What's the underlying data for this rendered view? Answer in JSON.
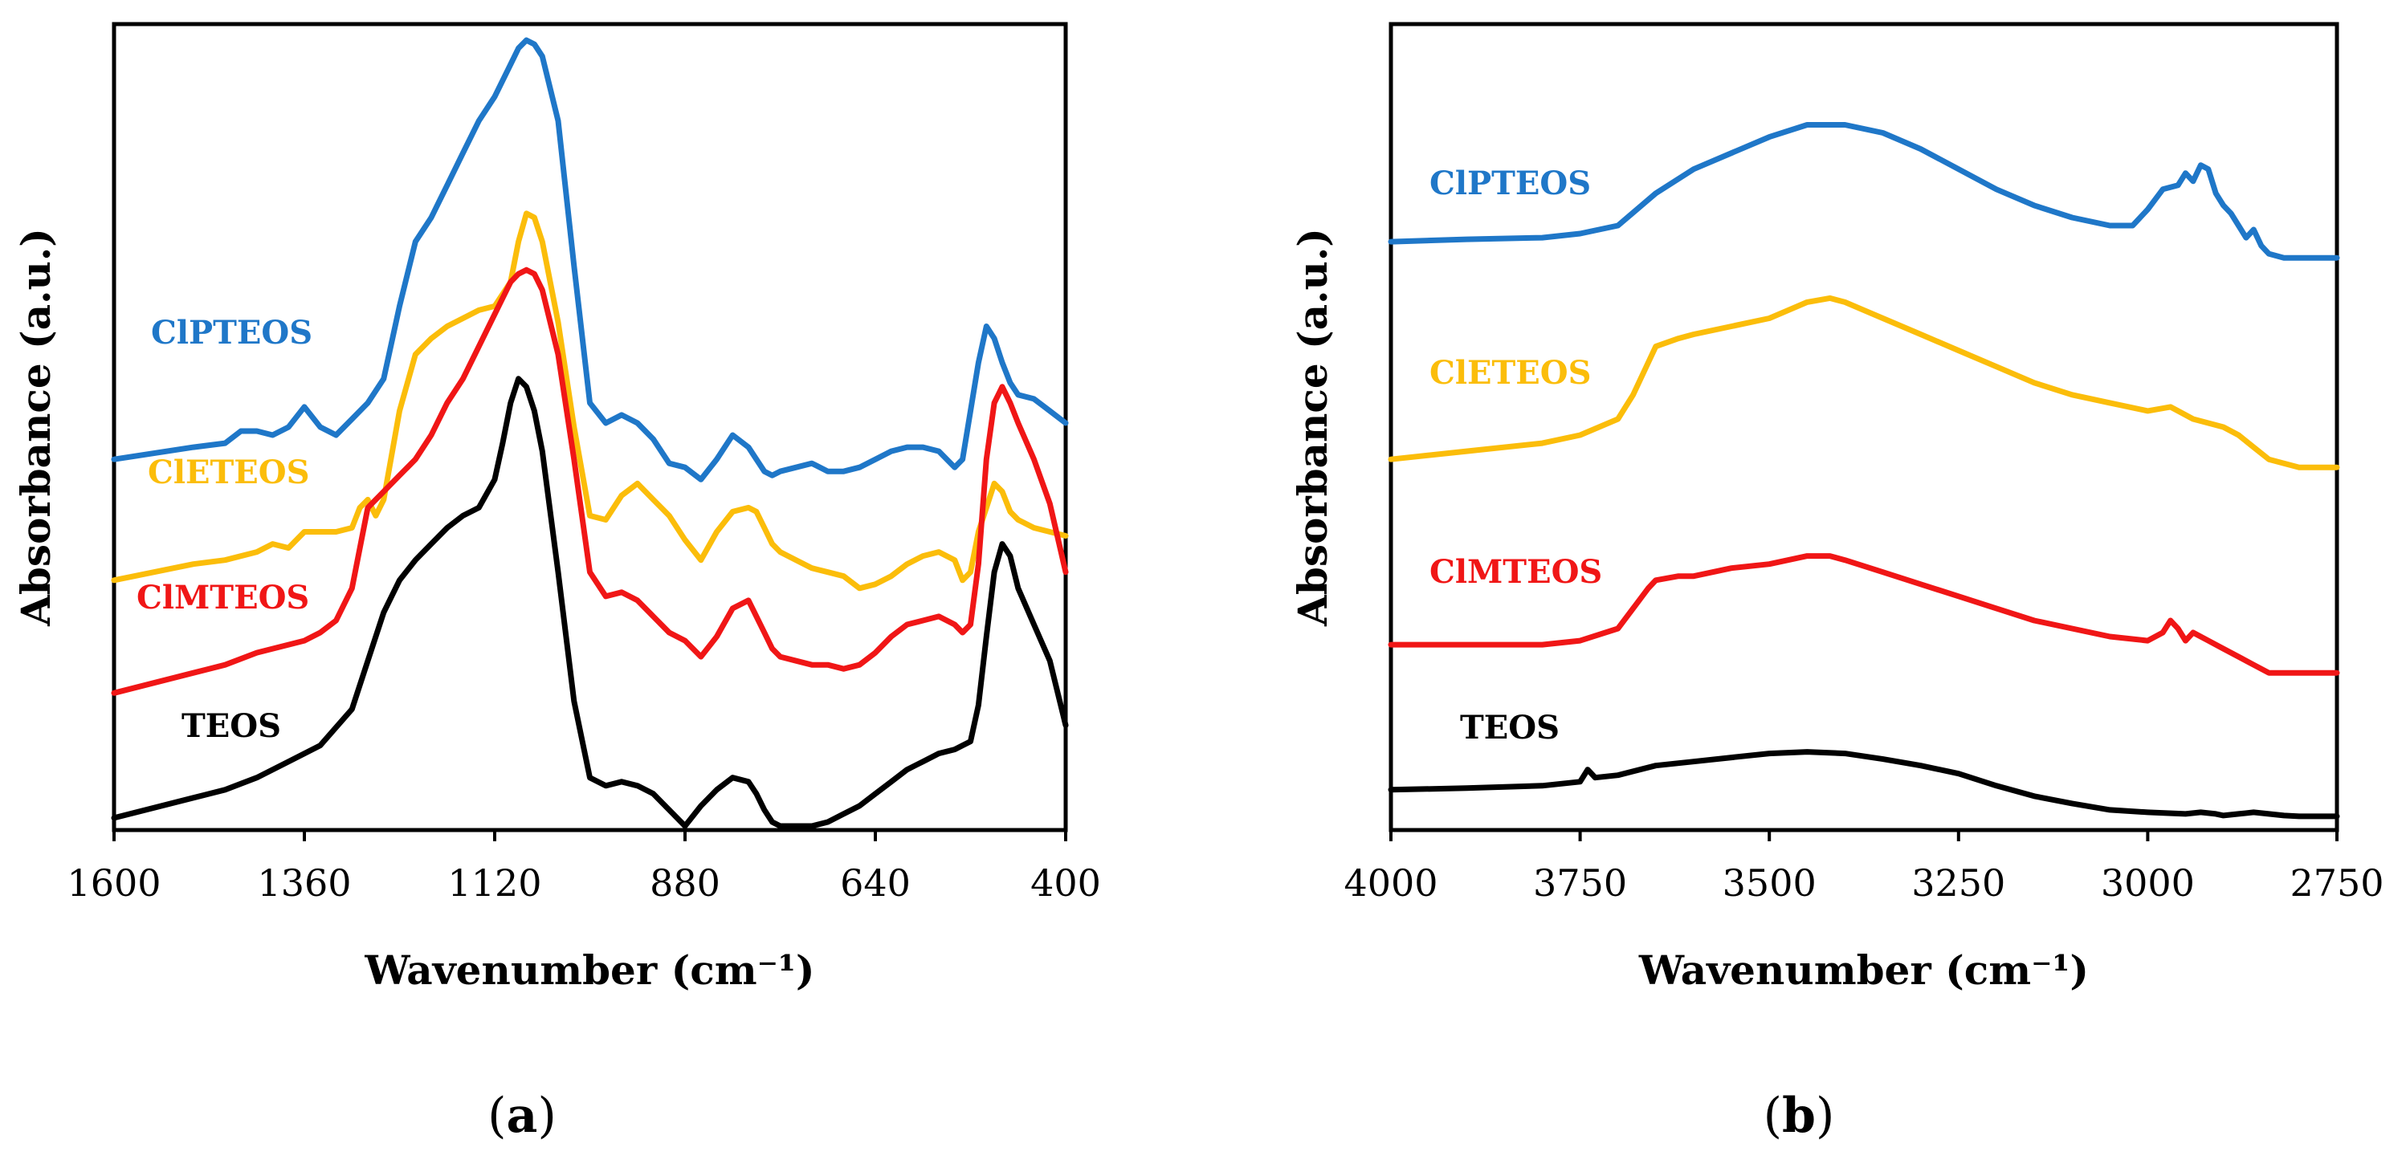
{
  "chart_data": [
    {
      "panel": "a",
      "type": "line",
      "xlabel": "Wavenumber (cm⁻¹)",
      "ylabel": "Absorbance (a.u.)",
      "xlim": [
        1600,
        400
      ],
      "x_reversed": true,
      "xticks": [
        "1600",
        "1360",
        "1120",
        "880",
        "640",
        "400"
      ],
      "ylim": [
        0,
        10
      ],
      "y_ticks_shown": false,
      "legend": "inline labels beside curves",
      "series": [
        {
          "name": "ClPTEOS",
          "color": "#1f77c8",
          "x": [
            1600,
            1500,
            1460,
            1440,
            1420,
            1400,
            1380,
            1360,
            1340,
            1320,
            1300,
            1280,
            1260,
            1240,
            1220,
            1200,
            1180,
            1160,
            1140,
            1120,
            1100,
            1090,
            1080,
            1070,
            1060,
            1040,
            1020,
            1000,
            980,
            960,
            940,
            920,
            900,
            880,
            860,
            840,
            820,
            800,
            790,
            780,
            770,
            760,
            740,
            720,
            700,
            680,
            660,
            640,
            620,
            600,
            580,
            560,
            540,
            530,
            520,
            510,
            500,
            490,
            480,
            470,
            460,
            440,
            420,
            400
          ],
          "y": [
            4.6,
            4.75,
            4.8,
            4.95,
            4.95,
            4.9,
            5.0,
            5.25,
            5.0,
            4.9,
            5.1,
            5.3,
            5.6,
            6.5,
            7.3,
            7.6,
            8.0,
            8.4,
            8.8,
            9.1,
            9.5,
            9.7,
            9.8,
            9.75,
            9.6,
            8.8,
            7.0,
            5.3,
            5.05,
            5.15,
            5.05,
            4.85,
            4.55,
            4.5,
            4.35,
            4.6,
            4.9,
            4.75,
            4.6,
            4.45,
            4.4,
            4.45,
            4.5,
            4.55,
            4.45,
            4.45,
            4.5,
            4.6,
            4.7,
            4.75,
            4.75,
            4.7,
            4.5,
            4.6,
            5.2,
            5.8,
            6.25,
            6.1,
            5.8,
            5.55,
            5.4,
            5.35,
            5.2,
            5.05
          ]
        },
        {
          "name": "ClETEOS",
          "color": "#fbbd0a",
          "x": [
            1600,
            1500,
            1460,
            1420,
            1400,
            1380,
            1360,
            1340,
            1320,
            1300,
            1290,
            1280,
            1270,
            1260,
            1240,
            1220,
            1200,
            1180,
            1160,
            1140,
            1120,
            1100,
            1090,
            1080,
            1070,
            1060,
            1040,
            1020,
            1000,
            980,
            960,
            940,
            920,
            900,
            880,
            860,
            840,
            820,
            800,
            790,
            780,
            770,
            760,
            740,
            720,
            700,
            680,
            660,
            640,
            620,
            600,
            580,
            560,
            540,
            530,
            520,
            510,
            500,
            490,
            480,
            470,
            460,
            440,
            420,
            400
          ],
          "y": [
            3.1,
            3.3,
            3.35,
            3.45,
            3.55,
            3.5,
            3.7,
            3.7,
            3.7,
            3.75,
            4.0,
            4.1,
            3.9,
            4.1,
            5.2,
            5.9,
            6.1,
            6.25,
            6.35,
            6.45,
            6.5,
            6.8,
            7.3,
            7.65,
            7.6,
            7.3,
            6.3,
            5.0,
            3.9,
            3.85,
            4.15,
            4.3,
            4.1,
            3.9,
            3.6,
            3.35,
            3.7,
            3.95,
            4.0,
            3.95,
            3.75,
            3.55,
            3.45,
            3.35,
            3.25,
            3.2,
            3.15,
            3.0,
            3.05,
            3.15,
            3.3,
            3.4,
            3.45,
            3.35,
            3.1,
            3.2,
            3.7,
            4.0,
            4.3,
            4.2,
            3.95,
            3.85,
            3.75,
            3.7,
            3.65
          ]
        },
        {
          "name": "ClMTEOS",
          "color": "#f01616",
          "x": [
            1600,
            1500,
            1460,
            1420,
            1400,
            1380,
            1360,
            1340,
            1320,
            1300,
            1280,
            1260,
            1240,
            1220,
            1200,
            1180,
            1160,
            1140,
            1120,
            1100,
            1090,
            1080,
            1070,
            1060,
            1040,
            1020,
            1000,
            980,
            960,
            940,
            920,
            900,
            880,
            860,
            840,
            820,
            800,
            790,
            780,
            770,
            760,
            740,
            720,
            700,
            680,
            660,
            640,
            620,
            600,
            580,
            560,
            540,
            530,
            520,
            510,
            500,
            490,
            480,
            470,
            460,
            440,
            420,
            400
          ],
          "y": [
            1.7,
            1.95,
            2.05,
            2.2,
            2.25,
            2.3,
            2.35,
            2.45,
            2.6,
            3.0,
            4.0,
            4.2,
            4.4,
            4.6,
            4.9,
            5.3,
            5.6,
            6.0,
            6.4,
            6.8,
            6.9,
            6.95,
            6.9,
            6.7,
            5.9,
            4.6,
            3.2,
            2.9,
            2.95,
            2.85,
            2.65,
            2.45,
            2.35,
            2.15,
            2.4,
            2.75,
            2.85,
            2.65,
            2.45,
            2.25,
            2.15,
            2.1,
            2.05,
            2.05,
            2.0,
            2.05,
            2.2,
            2.4,
            2.55,
            2.6,
            2.65,
            2.55,
            2.45,
            2.55,
            3.3,
            4.6,
            5.3,
            5.5,
            5.3,
            5.05,
            4.6,
            4.05,
            3.2
          ]
        },
        {
          "name": "TEOS",
          "color": "#000000",
          "x": [
            1600,
            1500,
            1460,
            1420,
            1380,
            1340,
            1300,
            1280,
            1260,
            1240,
            1220,
            1200,
            1180,
            1160,
            1140,
            1120,
            1110,
            1100,
            1090,
            1080,
            1070,
            1060,
            1040,
            1020,
            1000,
            980,
            960,
            940,
            920,
            900,
            880,
            860,
            840,
            820,
            800,
            790,
            780,
            770,
            760,
            740,
            720,
            700,
            680,
            660,
            640,
            620,
            600,
            580,
            560,
            540,
            530,
            520,
            510,
            500,
            490,
            480,
            470,
            460,
            440,
            420,
            400
          ],
          "y": [
            0.15,
            0.4,
            0.5,
            0.65,
            0.85,
            1.05,
            1.5,
            2.1,
            2.7,
            3.1,
            3.35,
            3.55,
            3.75,
            3.9,
            4.0,
            4.35,
            4.8,
            5.3,
            5.6,
            5.5,
            5.2,
            4.7,
            3.2,
            1.6,
            0.65,
            0.55,
            0.6,
            0.55,
            0.45,
            0.25,
            0.05,
            0.3,
            0.5,
            0.65,
            0.6,
            0.45,
            0.25,
            0.1,
            0.05,
            0.05,
            0.05,
            0.1,
            0.2,
            0.3,
            0.45,
            0.6,
            0.75,
            0.85,
            0.95,
            1.0,
            1.05,
            1.1,
            1.55,
            2.4,
            3.2,
            3.55,
            3.4,
            3.0,
            2.55,
            2.1,
            1.3
          ]
        }
      ]
    },
    {
      "panel": "b",
      "type": "line",
      "xlabel": "Wavenumber (cm⁻¹)",
      "ylabel": "Absorbance (a.u.)",
      "xlim": [
        4000,
        2750
      ],
      "x_reversed": true,
      "xticks": [
        "4000",
        "3750",
        "3500",
        "3250",
        "3000",
        "2750"
      ],
      "ylim": [
        0,
        10
      ],
      "y_ticks_shown": false,
      "legend": "inline labels beside curves",
      "series": [
        {
          "name": "ClPTEOS",
          "color": "#1f77c8",
          "x": [
            4000,
            3900,
            3800,
            3750,
            3700,
            3650,
            3600,
            3550,
            3500,
            3450,
            3400,
            3350,
            3300,
            3250,
            3200,
            3150,
            3100,
            3050,
            3020,
            3000,
            2980,
            2960,
            2950,
            2940,
            2930,
            2920,
            2910,
            2900,
            2890,
            2880,
            2870,
            2860,
            2850,
            2840,
            2820,
            2800,
            2780,
            2750
          ],
          "y": [
            7.3,
            7.33,
            7.35,
            7.4,
            7.5,
            7.9,
            8.2,
            8.4,
            8.6,
            8.75,
            8.75,
            8.65,
            8.45,
            8.2,
            7.95,
            7.75,
            7.6,
            7.5,
            7.5,
            7.7,
            7.95,
            8.0,
            8.15,
            8.05,
            8.25,
            8.2,
            7.9,
            7.75,
            7.65,
            7.5,
            7.35,
            7.45,
            7.25,
            7.15,
            7.1,
            7.1,
            7.1,
            7.1
          ]
        },
        {
          "name": "ClETEOS",
          "color": "#fbbd0a",
          "x": [
            4000,
            3900,
            3800,
            3750,
            3700,
            3680,
            3660,
            3650,
            3620,
            3600,
            3550,
            3500,
            3450,
            3420,
            3400,
            3350,
            3300,
            3250,
            3200,
            3150,
            3100,
            3050,
            3000,
            2970,
            2960,
            2940,
            2920,
            2900,
            2880,
            2860,
            2840,
            2820,
            2800,
            2780,
            2750
          ],
          "y": [
            4.6,
            4.7,
            4.8,
            4.9,
            5.1,
            5.4,
            5.8,
            6.0,
            6.1,
            6.15,
            6.25,
            6.35,
            6.55,
            6.6,
            6.55,
            6.35,
            6.15,
            5.95,
            5.75,
            5.55,
            5.4,
            5.3,
            5.2,
            5.25,
            5.2,
            5.1,
            5.05,
            5.0,
            4.9,
            4.75,
            4.6,
            4.55,
            4.5,
            4.5,
            4.5
          ]
        },
        {
          "name": "ClMTEOS",
          "color": "#f01616",
          "x": [
            4000,
            3900,
            3800,
            3750,
            3700,
            3680,
            3660,
            3650,
            3620,
            3600,
            3550,
            3500,
            3450,
            3420,
            3400,
            3350,
            3300,
            3250,
            3200,
            3150,
            3100,
            3050,
            3000,
            2980,
            2970,
            2960,
            2950,
            2940,
            2920,
            2900,
            2880,
            2860,
            2840,
            2820,
            2800,
            2780,
            2750
          ],
          "y": [
            2.3,
            2.3,
            2.3,
            2.35,
            2.5,
            2.75,
            3.0,
            3.1,
            3.15,
            3.15,
            3.25,
            3.3,
            3.4,
            3.4,
            3.35,
            3.2,
            3.05,
            2.9,
            2.75,
            2.6,
            2.5,
            2.4,
            2.35,
            2.45,
            2.6,
            2.5,
            2.35,
            2.45,
            2.35,
            2.25,
            2.15,
            2.05,
            1.95,
            1.95,
            1.95,
            1.95,
            1.95
          ]
        },
        {
          "name": "TEOS",
          "color": "#000000",
          "x": [
            4000,
            3900,
            3800,
            3750,
            3740,
            3730,
            3700,
            3650,
            3600,
            3550,
            3500,
            3450,
            3400,
            3350,
            3300,
            3250,
            3200,
            3150,
            3100,
            3050,
            3000,
            2950,
            2930,
            2910,
            2900,
            2880,
            2860,
            2840,
            2820,
            2800,
            2780,
            2750
          ],
          "y": [
            0.5,
            0.52,
            0.55,
            0.6,
            0.75,
            0.65,
            0.68,
            0.8,
            0.85,
            0.9,
            0.95,
            0.97,
            0.95,
            0.88,
            0.8,
            0.7,
            0.55,
            0.42,
            0.33,
            0.25,
            0.22,
            0.2,
            0.22,
            0.2,
            0.18,
            0.2,
            0.22,
            0.2,
            0.18,
            0.17,
            0.17,
            0.17
          ]
        }
      ]
    }
  ],
  "figure": {
    "panel_labels": [
      {
        "open": "(",
        "letter": "a",
        "close": ")"
      },
      {
        "open": "(",
        "letter": "b",
        "close": ")"
      }
    ]
  }
}
